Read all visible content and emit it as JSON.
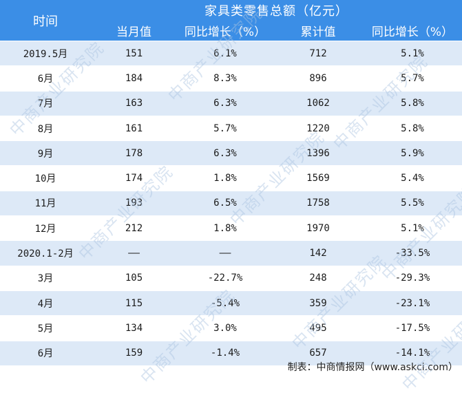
{
  "table": {
    "time_header": "时间",
    "group_title": "家具类零售总额（亿元）",
    "sub_headers": [
      "当月值",
      "同比增长（%）",
      "累计值",
      "同比增长（%）"
    ],
    "rows": [
      [
        "2019.5月",
        "151",
        "6.1%",
        "712",
        "5.1%"
      ],
      [
        "6月",
        "184",
        "8.3%",
        "896",
        "5.7%"
      ],
      [
        "7月",
        "163",
        "6.3%",
        "1062",
        "5.8%"
      ],
      [
        "8月",
        "161",
        "5.7%",
        "1220",
        "5.8%"
      ],
      [
        "9月",
        "178",
        "6.3%",
        "1396",
        "5.9%"
      ],
      [
        "10月",
        "174",
        "1.8%",
        "1569",
        "5.4%"
      ],
      [
        "11月",
        "193",
        "6.5%",
        "1758",
        "5.5%"
      ],
      [
        "12月",
        "212",
        "1.8%",
        "1970",
        "5.1%"
      ],
      [
        "2020.1-2月",
        "——",
        "——",
        "142",
        "-33.5%"
      ],
      [
        "3月",
        "105",
        "-22.7%",
        "248",
        "-29.3%"
      ],
      [
        "4月",
        "115",
        "-5.4%",
        "359",
        "-23.1%"
      ],
      [
        "5月",
        "134",
        "3.0%",
        "495",
        "-17.5%"
      ],
      [
        "6月",
        "159",
        "-1.4%",
        "657",
        "-14.1%"
      ]
    ]
  },
  "footer": "制表：中商情报网（www.askci.com）",
  "watermark": "中商产业研究院",
  "colors": {
    "header_bg": "#3b8ee6",
    "stripe_bg": "#dde9f7"
  }
}
